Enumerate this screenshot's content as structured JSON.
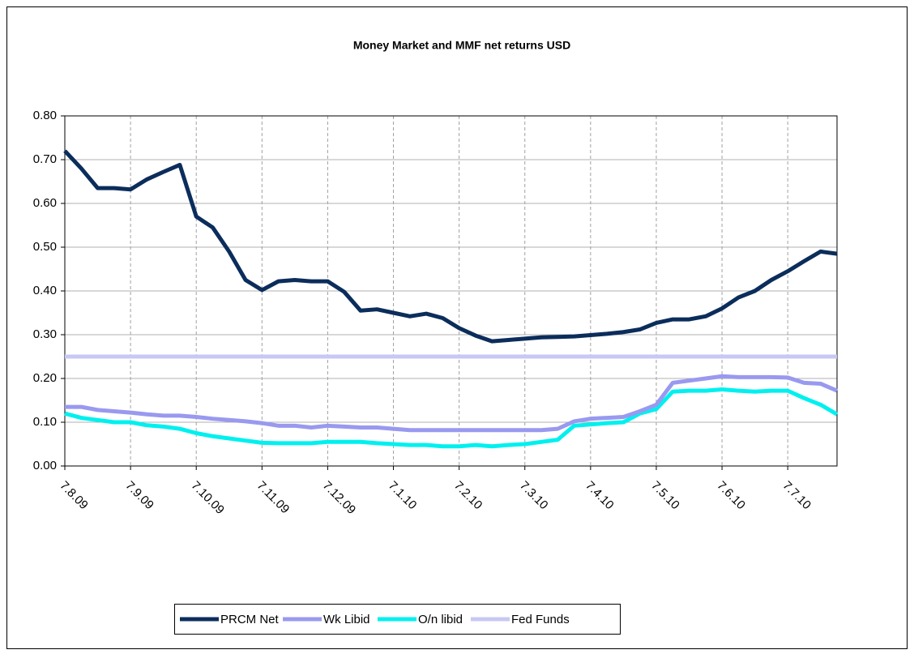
{
  "chart_data": {
    "type": "line",
    "title": "Money Market and MMF net returns USD",
    "categories": [
      "7.8.09",
      null,
      null,
      null,
      "7.9.09",
      null,
      null,
      null,
      "7.10.09",
      null,
      null,
      null,
      "7.11.09",
      null,
      null,
      null,
      "7.12.09",
      null,
      null,
      null,
      "7.1.10",
      null,
      null,
      null,
      "7.2.10",
      null,
      null,
      null,
      "7.3.10",
      null,
      null,
      null,
      "7.4.10",
      null,
      null,
      null,
      "7.5.10",
      null,
      null,
      null,
      "7.6.10",
      null,
      null,
      null,
      "7.7.10",
      null,
      null,
      null
    ],
    "series": [
      {
        "name": "PRCM Net",
        "color": "#0b2d5b",
        "values": [
          0.72,
          0.68,
          0.635,
          0.635,
          0.632,
          0.655,
          0.672,
          0.688,
          0.57,
          0.545,
          0.49,
          0.425,
          0.402,
          0.422,
          0.425,
          0.422,
          0.422,
          0.398,
          0.355,
          0.358,
          0.35,
          0.342,
          0.348,
          0.338,
          0.315,
          0.298,
          0.285,
          0.288,
          0.291,
          0.294,
          0.295,
          0.296,
          0.299,
          0.302,
          0.306,
          0.312,
          0.327,
          0.335,
          0.335,
          0.342,
          0.36,
          0.385,
          0.4,
          0.425,
          0.445,
          0.468,
          0.49,
          0.485
        ]
      },
      {
        "name": "Wk Libid",
        "color": "#9999f0",
        "values": [
          0.135,
          0.135,
          0.128,
          0.125,
          0.122,
          0.118,
          0.115,
          0.115,
          0.112,
          0.108,
          0.105,
          0.102,
          0.098,
          0.092,
          0.092,
          0.088,
          0.092,
          0.09,
          0.088,
          0.088,
          0.085,
          0.082,
          0.082,
          0.082,
          0.082,
          0.082,
          0.082,
          0.082,
          0.082,
          0.082,
          0.085,
          0.102,
          0.108,
          0.11,
          0.112,
          0.125,
          0.14,
          0.19,
          0.195,
          0.2,
          0.205,
          0.203,
          0.203,
          0.203,
          0.202,
          0.19,
          0.188,
          0.172
        ]
      },
      {
        "name": "O/n libid",
        "color": "#00f0f0",
        "values": [
          0.12,
          0.11,
          0.105,
          0.1,
          0.1,
          0.093,
          0.09,
          0.085,
          0.075,
          0.068,
          0.063,
          0.058,
          0.053,
          0.052,
          0.052,
          0.052,
          0.055,
          0.055,
          0.055,
          0.052,
          0.05,
          0.048,
          0.048,
          0.045,
          0.045,
          0.048,
          0.045,
          0.048,
          0.05,
          0.055,
          0.06,
          0.092,
          0.095,
          0.098,
          0.1,
          0.12,
          0.13,
          0.17,
          0.172,
          0.172,
          0.175,
          0.172,
          0.17,
          0.172,
          0.172,
          0.155,
          0.14,
          0.118
        ]
      },
      {
        "name": "Fed Funds",
        "color": "#c8c8f5",
        "values": [
          0.25,
          0.25,
          0.25,
          0.25,
          0.25,
          0.25,
          0.25,
          0.25,
          0.25,
          0.25,
          0.25,
          0.25,
          0.25,
          0.25,
          0.25,
          0.25,
          0.25,
          0.25,
          0.25,
          0.25,
          0.25,
          0.25,
          0.25,
          0.25,
          0.25,
          0.25,
          0.25,
          0.25,
          0.25,
          0.25,
          0.25,
          0.25,
          0.25,
          0.25,
          0.25,
          0.25,
          0.25,
          0.25,
          0.25,
          0.25,
          0.25,
          0.25,
          0.25,
          0.25,
          0.25,
          0.25,
          0.25,
          0.25
        ]
      }
    ],
    "ylim": [
      0,
      0.8
    ],
    "yticks": [
      {
        "value": 0,
        "label": "0.00"
      },
      {
        "value": 0.1,
        "label": "0.10"
      },
      {
        "value": 0.2,
        "label": "0.20"
      },
      {
        "value": 0.3,
        "label": "0.30"
      },
      {
        "value": 0.4,
        "label": "0.40"
      },
      {
        "value": 0.5,
        "label": "0.50"
      },
      {
        "value": 0.6,
        "label": "0.60"
      },
      {
        "value": 0.7,
        "label": "0.70"
      },
      {
        "value": 0.8,
        "label": "0.80"
      }
    ],
    "grid": true,
    "legend": "bottom"
  }
}
